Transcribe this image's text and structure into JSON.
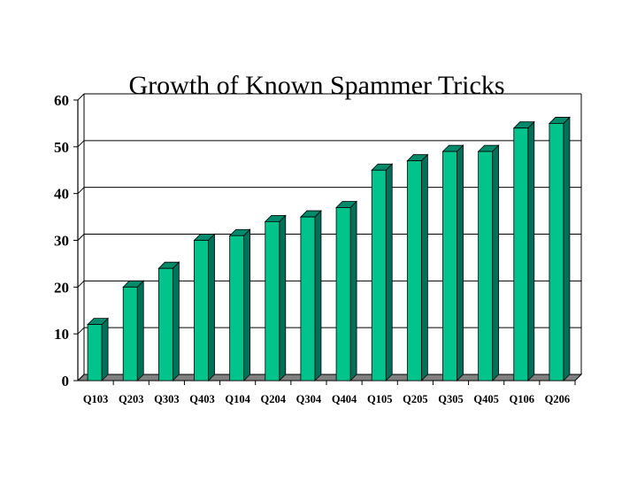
{
  "chart_data": {
    "type": "bar",
    "title": "Growth of Known Spammer Tricks",
    "xlabel": "",
    "ylabel": "",
    "categories": [
      "Q103",
      "Q203",
      "Q303",
      "Q403",
      "Q104",
      "Q204",
      "Q304",
      "Q404",
      "Q105",
      "Q205",
      "Q305",
      "Q405",
      "Q106",
      "Q206"
    ],
    "values": [
      12,
      20,
      24,
      30,
      31,
      34,
      35,
      37,
      45,
      47,
      49,
      49,
      54,
      55
    ],
    "ylim": [
      0,
      60
    ],
    "yticks": [
      "0",
      "10",
      "20",
      "30",
      "40",
      "50",
      "60"
    ],
    "grid": true,
    "legend": "none",
    "style": "3d",
    "colors": {
      "bar_front": "#00C48C",
      "bar_side": "#00705A",
      "bar_top": "#008A6C",
      "gridline": "#000000",
      "floor": "#808080"
    }
  }
}
